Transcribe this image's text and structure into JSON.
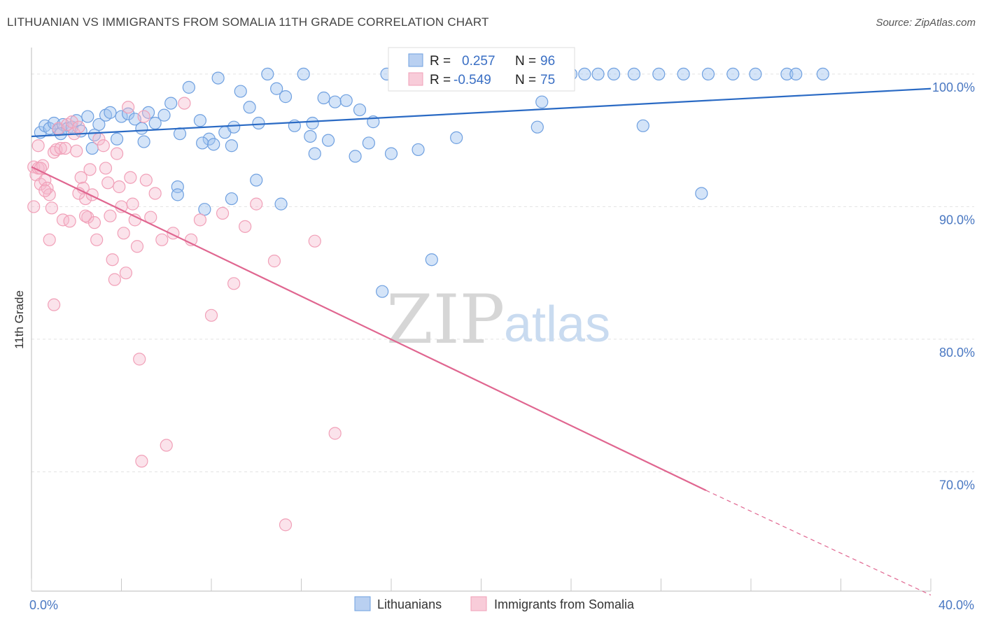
{
  "title": "LITHUANIAN VS IMMIGRANTS FROM SOMALIA 11TH GRADE CORRELATION CHART",
  "source": "Source: ZipAtlas.com",
  "watermark": {
    "zip": "ZIP",
    "atlas": "atlas"
  },
  "legend": {
    "r_label": "R =",
    "n_label": "N =",
    "entries": [
      {
        "r": "0.257",
        "n": "96",
        "color": "#6fa0e0"
      },
      {
        "r": "-0.549",
        "n": "75",
        "color": "#f1a0b8"
      }
    ]
  },
  "bottom_legend": [
    "Lithuanians",
    "Immigrants from Somalia"
  ],
  "chart_data": {
    "type": "scatter",
    "title": "LITHUANIAN VS IMMIGRANTS FROM SOMALIA 11TH GRADE CORRELATION CHART",
    "xlabel": "",
    "ylabel": "11th Grade",
    "xlim": [
      0,
      40
    ],
    "ylim": [
      61,
      102
    ],
    "x_tick_labels": [
      {
        "value": 0,
        "label": "0.0%"
      },
      {
        "value": 40,
        "label": "40.0%"
      }
    ],
    "y_tick_labels": [
      {
        "value": 100,
        "label": "100.0%"
      },
      {
        "value": 90,
        "label": "90.0%"
      },
      {
        "value": 80,
        "label": "80.0%"
      },
      {
        "value": 70,
        "label": "70.0%"
      }
    ],
    "grid": true,
    "legend_position": "top-center",
    "series": [
      {
        "name": "Lithuanians",
        "color": "#6fa0e0",
        "points": [
          [
            0.4,
            95.6
          ],
          [
            0.6,
            96.1
          ],
          [
            0.8,
            95.9
          ],
          [
            1.0,
            96.3
          ],
          [
            1.2,
            95.8
          ],
          [
            1.4,
            96.2
          ],
          [
            1.6,
            95.9
          ],
          [
            1.8,
            96.0
          ],
          [
            2.0,
            96.5
          ],
          [
            2.2,
            95.7
          ],
          [
            2.5,
            96.8
          ],
          [
            2.8,
            95.4
          ],
          [
            3.0,
            96.2
          ],
          [
            3.3,
            96.9
          ],
          [
            3.5,
            97.1
          ],
          [
            3.8,
            95.1
          ],
          [
            4.0,
            96.8
          ],
          [
            4.3,
            97.0
          ],
          [
            4.6,
            96.6
          ],
          [
            4.9,
            95.9
          ],
          [
            5.2,
            97.1
          ],
          [
            5.5,
            96.3
          ],
          [
            5.9,
            96.9
          ],
          [
            6.2,
            97.8
          ],
          [
            6.6,
            95.5
          ],
          [
            7.0,
            99.0
          ],
          [
            7.5,
            96.5
          ],
          [
            7.9,
            95.1
          ],
          [
            8.3,
            99.7
          ],
          [
            8.6,
            95.6
          ],
          [
            9.0,
            96.0
          ],
          [
            9.3,
            98.7
          ],
          [
            9.7,
            97.5
          ],
          [
            10.1,
            96.3
          ],
          [
            10.5,
            100.0
          ],
          [
            10.9,
            98.9
          ],
          [
            11.3,
            98.3
          ],
          [
            11.7,
            96.1
          ],
          [
            12.1,
            100.0
          ],
          [
            12.5,
            96.3
          ],
          [
            13.0,
            98.2
          ],
          [
            13.5,
            97.9
          ],
          [
            14.0,
            98.0
          ],
          [
            14.6,
            97.3
          ],
          [
            15.2,
            96.4
          ],
          [
            15.8,
            100.0
          ],
          [
            16.4,
            100.0
          ],
          [
            17.0,
            100.0
          ],
          [
            17.6,
            100.0
          ],
          [
            18.2,
            100.0
          ],
          [
            18.8,
            100.0
          ],
          [
            19.4,
            100.0
          ],
          [
            20.1,
            100.0
          ],
          [
            20.7,
            100.0
          ],
          [
            21.4,
            100.0
          ],
          [
            22.0,
            100.0
          ],
          [
            22.7,
            97.9
          ],
          [
            23.3,
            100.0
          ],
          [
            24.0,
            100.0
          ],
          [
            24.6,
            100.0
          ],
          [
            25.2,
            100.0
          ],
          [
            25.9,
            100.0
          ],
          [
            26.8,
            100.0
          ],
          [
            27.9,
            100.0
          ],
          [
            29.0,
            100.0
          ],
          [
            30.1,
            100.0
          ],
          [
            31.2,
            100.0
          ],
          [
            32.2,
            100.0
          ],
          [
            33.6,
            100.0
          ],
          [
            34.0,
            100.0
          ],
          [
            35.2,
            100.0
          ],
          [
            1.3,
            95.5
          ],
          [
            2.7,
            94.4
          ],
          [
            5.0,
            94.9
          ],
          [
            6.5,
            91.5
          ],
          [
            7.6,
            94.8
          ],
          [
            8.1,
            94.7
          ],
          [
            8.9,
            94.6
          ],
          [
            10.0,
            92.0
          ],
          [
            11.1,
            90.2
          ],
          [
            12.4,
            95.3
          ],
          [
            12.6,
            94.0
          ],
          [
            13.2,
            95.0
          ],
          [
            14.4,
            93.8
          ],
          [
            15.0,
            94.8
          ],
          [
            16.0,
            94.0
          ],
          [
            17.2,
            94.3
          ],
          [
            18.9,
            95.2
          ],
          [
            22.5,
            96.0
          ],
          [
            27.2,
            96.1
          ],
          [
            6.5,
            90.9
          ],
          [
            7.7,
            89.8
          ],
          [
            8.9,
            90.6
          ],
          [
            17.8,
            86.0
          ],
          [
            15.6,
            83.6
          ],
          [
            29.8,
            91.0
          ]
        ]
      },
      {
        "name": "Immigrants from Somalia",
        "color": "#f1a0b8",
        "points": [
          [
            0.1,
            93.0
          ],
          [
            0.2,
            92.4
          ],
          [
            0.3,
            92.9
          ],
          [
            0.4,
            91.7
          ],
          [
            0.5,
            93.1
          ],
          [
            0.6,
            92.0
          ],
          [
            0.7,
            91.4
          ],
          [
            0.8,
            90.9
          ],
          [
            0.9,
            89.9
          ],
          [
            1.0,
            94.1
          ],
          [
            1.1,
            94.3
          ],
          [
            1.2,
            95.9
          ],
          [
            1.3,
            94.4
          ],
          [
            1.5,
            94.4
          ],
          [
            1.6,
            96.2
          ],
          [
            1.8,
            96.4
          ],
          [
            1.9,
            95.5
          ],
          [
            2.0,
            94.2
          ],
          [
            2.1,
            96.0
          ],
          [
            2.2,
            92.2
          ],
          [
            2.3,
            91.4
          ],
          [
            2.4,
            90.6
          ],
          [
            2.5,
            89.2
          ],
          [
            2.6,
            92.8
          ],
          [
            2.7,
            90.9
          ],
          [
            2.8,
            88.8
          ],
          [
            2.9,
            87.5
          ],
          [
            3.0,
            95.1
          ],
          [
            3.2,
            94.6
          ],
          [
            3.3,
            92.9
          ],
          [
            3.4,
            91.8
          ],
          [
            3.5,
            89.3
          ],
          [
            3.6,
            86.0
          ],
          [
            3.7,
            84.5
          ],
          [
            3.8,
            94.0
          ],
          [
            3.9,
            91.5
          ],
          [
            4.0,
            90.0
          ],
          [
            4.1,
            88.0
          ],
          [
            4.2,
            85.0
          ],
          [
            4.3,
            97.5
          ],
          [
            4.4,
            92.2
          ],
          [
            4.5,
            90.2
          ],
          [
            4.6,
            89.0
          ],
          [
            4.7,
            87.0
          ],
          [
            4.8,
            78.5
          ],
          [
            4.9,
            70.8
          ],
          [
            5.0,
            96.8
          ],
          [
            5.1,
            92.0
          ],
          [
            5.3,
            89.2
          ],
          [
            5.5,
            91.0
          ],
          [
            5.8,
            87.5
          ],
          [
            6.0,
            72.0
          ],
          [
            6.3,
            88.0
          ],
          [
            6.8,
            97.8
          ],
          [
            7.1,
            87.5
          ],
          [
            7.5,
            89.0
          ],
          [
            8.0,
            81.8
          ],
          [
            8.5,
            89.5
          ],
          [
            9.0,
            84.2
          ],
          [
            9.5,
            88.5
          ],
          [
            10.0,
            90.2
          ],
          [
            10.8,
            85.9
          ],
          [
            11.3,
            66.0
          ],
          [
            12.6,
            87.4
          ],
          [
            13.5,
            72.9
          ],
          [
            0.1,
            90.0
          ],
          [
            0.3,
            94.6
          ],
          [
            0.4,
            92.9
          ],
          [
            0.6,
            91.2
          ],
          [
            0.8,
            87.5
          ],
          [
            1.0,
            82.6
          ],
          [
            1.4,
            89.0
          ],
          [
            1.7,
            88.9
          ],
          [
            2.1,
            91.0
          ],
          [
            2.4,
            89.3
          ]
        ]
      }
    ],
    "trend_lines": [
      {
        "series": "Lithuanians",
        "color": "#2a6ac4",
        "x": [
          0,
          40
        ],
        "y": [
          95.3,
          98.9
        ]
      },
      {
        "series": "Immigrants from Somalia",
        "color": "#e06690",
        "x": [
          0,
          30
        ],
        "y": [
          93.0,
          68.6
        ],
        "dashed_extension_x": [
          30,
          40
        ],
        "dashed_extension_y": [
          68.6,
          60.7
        ]
      }
    ]
  }
}
